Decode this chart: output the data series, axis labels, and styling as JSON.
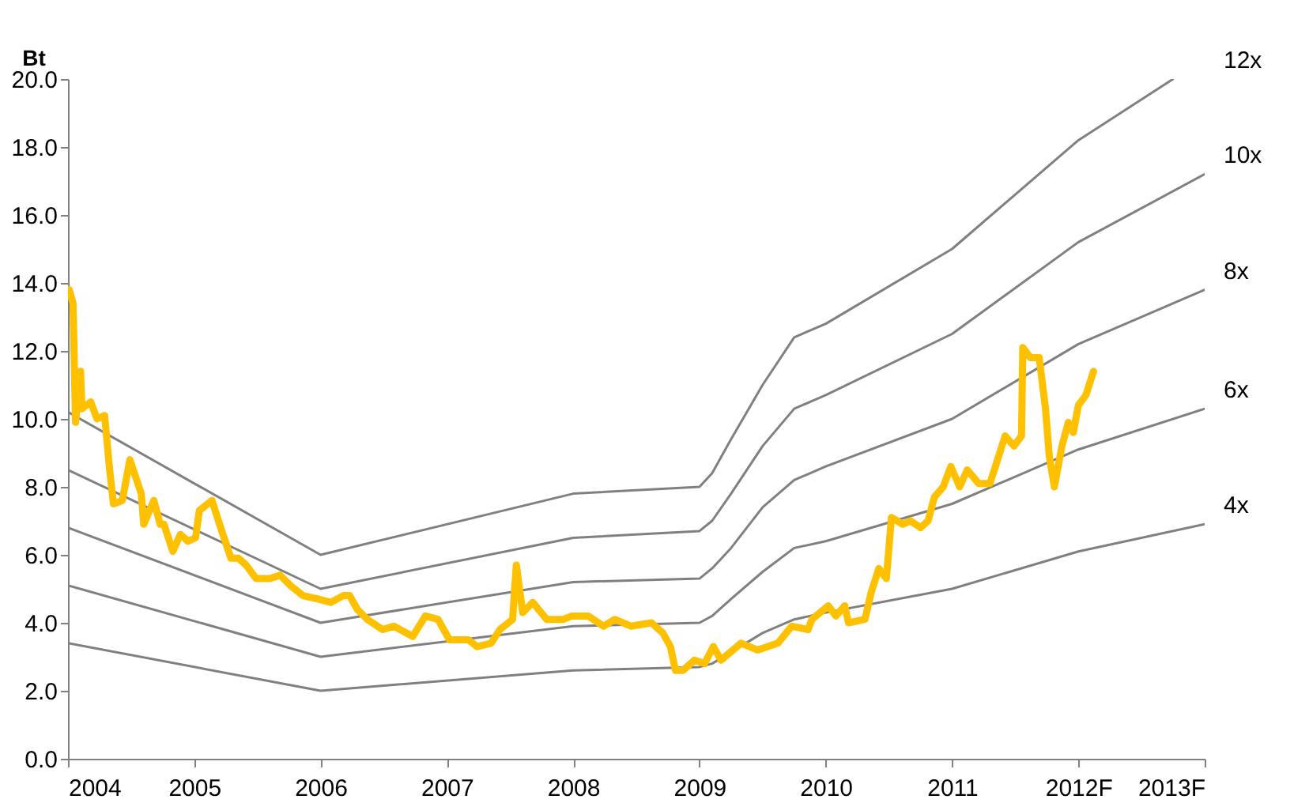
{
  "chart_data": {
    "type": "line",
    "ylabel": "Bt",
    "xlim": [
      2004,
      2013
    ],
    "ylim": [
      0,
      20
    ],
    "xticks": [
      2004,
      2005,
      2006,
      2007,
      2008,
      2009,
      2010,
      2011,
      {
        "value": 2012,
        "label": "2012F"
      },
      {
        "value": 2013,
        "label": "2013F"
      }
    ],
    "yticks": [
      {
        "value": 0,
        "label": "0.0"
      },
      {
        "value": 2,
        "label": "2.0"
      },
      {
        "value": 4,
        "label": "4.0"
      },
      {
        "value": 6,
        "label": "6.0"
      },
      {
        "value": 8,
        "label": "8.0"
      },
      {
        "value": 10,
        "label": "10.0"
      },
      {
        "value": 12,
        "label": "12.0"
      },
      {
        "value": 14,
        "label": "14.0"
      },
      {
        "value": 16,
        "label": "16.0"
      },
      {
        "value": 18,
        "label": "18.0"
      },
      {
        "value": 20,
        "label": "20.0"
      }
    ],
    "grid": false,
    "marker": "none",
    "line_style": "solid",
    "series": [
      {
        "name": "4x",
        "color": "#808080",
        "x": [
          2004,
          2006,
          2008,
          2009,
          2009.1,
          2009.5,
          2009.75,
          2010,
          2011,
          2012,
          2013
        ],
        "values": [
          3.4,
          2.0,
          2.6,
          2.7,
          2.8,
          3.7,
          4.1,
          4.3,
          5.0,
          6.1,
          6.9
        ]
      },
      {
        "name": "6x",
        "color": "#808080",
        "x": [
          2004,
          2006,
          2008,
          2009,
          2009.1,
          2009.25,
          2009.5,
          2009.75,
          2010,
          2011,
          2012,
          2013
        ],
        "values": [
          5.1,
          3.0,
          3.9,
          4.0,
          4.2,
          4.7,
          5.5,
          6.2,
          6.4,
          7.5,
          9.1,
          10.3
        ]
      },
      {
        "name": "8x",
        "color": "#808080",
        "x": [
          2004,
          2006,
          2008,
          2009,
          2009.1,
          2009.25,
          2009.5,
          2009.75,
          2010,
          2011,
          2012,
          2013
        ],
        "values": [
          6.8,
          4.0,
          5.2,
          5.3,
          5.6,
          6.2,
          7.4,
          8.2,
          8.6,
          10.0,
          12.2,
          13.8
        ]
      },
      {
        "name": "10x",
        "color": "#808080",
        "x": [
          2004,
          2006,
          2008,
          2009,
          2009.1,
          2009.25,
          2009.5,
          2009.75,
          2010,
          2011,
          2012,
          2013
        ],
        "values": [
          8.5,
          5.0,
          6.5,
          6.7,
          7.0,
          7.8,
          9.2,
          10.3,
          10.7,
          12.5,
          15.2,
          17.2
        ]
      },
      {
        "name": "12x",
        "color": "#808080",
        "x": [
          2004,
          2006,
          2008,
          2009,
          2009.1,
          2009.25,
          2009.5,
          2009.75,
          2010,
          2011,
          2012,
          2012.75
        ],
        "values": [
          10.2,
          6.0,
          7.8,
          8.0,
          8.4,
          9.4,
          11.0,
          12.4,
          12.8,
          15.0,
          18.2,
          20.0
        ]
      },
      {
        "color": "#ffc000",
        "x": [
          2004.01,
          2004.04,
          2004.06,
          2004.1,
          2004.11,
          2004.18,
          2004.23,
          2004.29,
          2004.33,
          2004.36,
          2004.43,
          2004.49,
          2004.58,
          2004.6,
          2004.68,
          2004.73,
          2004.76,
          2004.83,
          2004.89,
          2004.95,
          2005.01,
          2005.04,
          2005.14,
          2005.2,
          2005.29,
          2005.35,
          2005.41,
          2005.49,
          2005.6,
          2005.68,
          2005.76,
          2005.86,
          2005.98,
          2006.08,
          2006.18,
          2006.23,
          2006.29,
          2006.37,
          2006.49,
          2006.58,
          2006.73,
          2006.83,
          2006.93,
          2007.02,
          2007.17,
          2007.24,
          2007.35,
          2007.42,
          2007.52,
          2007.55,
          2007.6,
          2007.68,
          2007.79,
          2007.92,
          2007.99,
          2008.12,
          2008.24,
          2008.33,
          2008.46,
          2008.62,
          2008.71,
          2008.77,
          2008.81,
          2008.87,
          2008.96,
          2009.04,
          2009.11,
          2009.17,
          2009.33,
          2009.46,
          2009.62,
          2009.73,
          2009.86,
          2009.89,
          2010.02,
          2010.08,
          2010.15,
          2010.18,
          2010.31,
          2010.36,
          2010.42,
          2010.48,
          2010.52,
          2010.61,
          2010.67,
          2010.75,
          2010.81,
          2010.86,
          2010.93,
          2010.99,
          2011.06,
          2011.12,
          2011.21,
          2011.3,
          2011.36,
          2011.42,
          2011.49,
          2011.55,
          2011.56,
          2011.62,
          2011.69,
          2011.74,
          2011.77,
          2011.81,
          2011.87,
          2011.92,
          2011.96,
          2012.0,
          2012.06,
          2012.12
        ],
        "values": [
          13.8,
          13.4,
          9.9,
          11.4,
          10.3,
          10.5,
          10.0,
          10.1,
          8.5,
          7.5,
          7.6,
          8.8,
          7.8,
          6.9,
          7.6,
          6.9,
          6.9,
          6.1,
          6.6,
          6.4,
          6.5,
          7.3,
          7.6,
          6.9,
          5.9,
          5.9,
          5.7,
          5.3,
          5.3,
          5.4,
          5.1,
          4.8,
          4.7,
          4.6,
          4.8,
          4.8,
          4.4,
          4.1,
          3.8,
          3.9,
          3.6,
          4.2,
          4.1,
          3.5,
          3.5,
          3.3,
          3.4,
          3.8,
          4.1,
          5.7,
          4.3,
          4.6,
          4.1,
          4.1,
          4.2,
          4.2,
          3.9,
          4.1,
          3.9,
          4.0,
          3.7,
          3.3,
          2.6,
          2.6,
          2.9,
          2.8,
          3.3,
          2.9,
          3.4,
          3.2,
          3.4,
          3.9,
          3.8,
          4.1,
          4.5,
          4.2,
          4.5,
          4.0,
          4.1,
          4.9,
          5.6,
          5.3,
          7.1,
          6.9,
          7.0,
          6.8,
          7.0,
          7.7,
          8.0,
          8.6,
          8.0,
          8.5,
          8.1,
          8.1,
          8.8,
          9.5,
          9.2,
          9.5,
          12.1,
          11.8,
          11.8,
          10.3,
          8.9,
          8.0,
          9.2,
          9.9,
          9.6,
          10.4,
          10.7,
          11.4
        ]
      }
    ]
  }
}
